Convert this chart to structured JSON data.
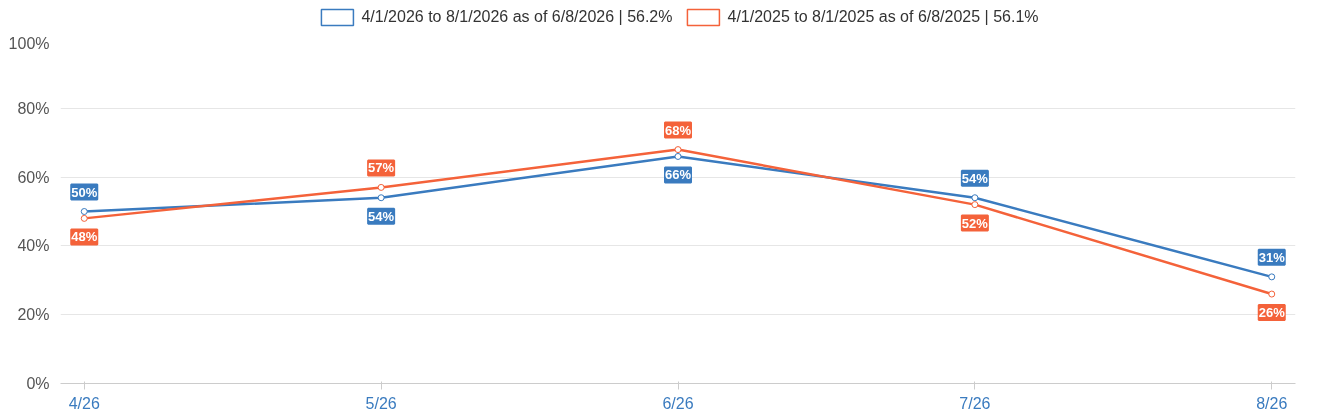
{
  "chart_data": {
    "type": "line",
    "categories": [
      "4/26",
      "5/26",
      "6/26",
      "7/26",
      "8/26"
    ],
    "series": [
      {
        "name": "4/1/2026 to 8/1/2026 as of 6/8/2026 | 56.2%",
        "color": "#3a7bbf",
        "values": [
          50,
          54,
          66,
          54,
          31
        ],
        "value_labels": [
          "50%",
          "54%",
          "66%",
          "54%",
          "31%"
        ]
      },
      {
        "name": "4/1/2025 to 8/1/2025 as of 6/8/2025 | 56.1%",
        "color": "#f4623a",
        "values": [
          48,
          57,
          68,
          52,
          26
        ],
        "value_labels": [
          "48%",
          "57%",
          "68%",
          "52%",
          "26%"
        ]
      }
    ],
    "ylim": [
      0,
      100
    ],
    "yticks": [
      {
        "value": 0,
        "label": "0%"
      },
      {
        "value": 20,
        "label": "20%"
      },
      {
        "value": 40,
        "label": "40%"
      },
      {
        "value": 60,
        "label": "60%"
      },
      {
        "value": 80,
        "label": "80%"
      },
      {
        "value": 100,
        "label": "100%"
      }
    ],
    "grid": "y",
    "legend": "top",
    "marker": "circle",
    "line_style": "solid"
  }
}
